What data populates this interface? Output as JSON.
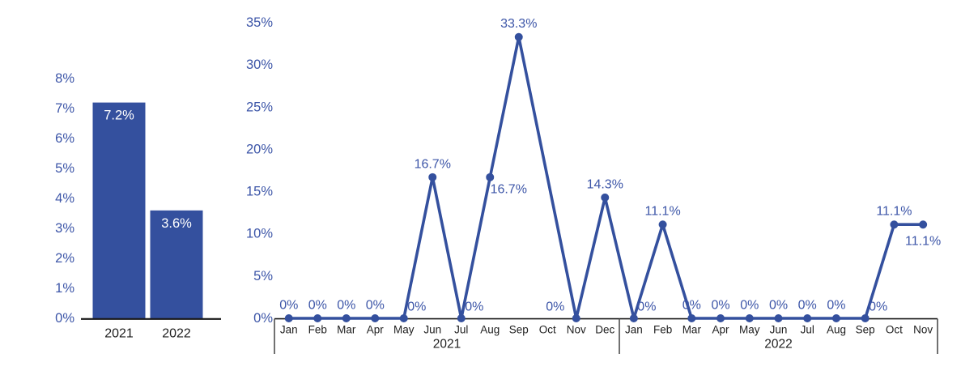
{
  "page": {
    "background": "#ffffff"
  },
  "colors": {
    "series_blue": "#34509E",
    "label_blue": "#3D56A8",
    "bar_value_white": "#ffffff",
    "axis_black": "#1a1a1a",
    "category_text": "#1f1f1f",
    "divider_gray": "#4d4d4d"
  },
  "chart_data": [
    {
      "type": "bar",
      "name": "annual-rate",
      "title": "",
      "xlabel": "",
      "ylabel": "",
      "categories": [
        "2021",
        "2022"
      ],
      "values": [
        7.2,
        3.6
      ],
      "data_labels": [
        "7.2%",
        "3.6%"
      ],
      "ylim": [
        0,
        8
      ],
      "ytick_step": 1,
      "ytick_labels": [
        "0%",
        "1%",
        "2%",
        "3%",
        "4%",
        "5%",
        "6%",
        "7%",
        "8%"
      ],
      "grid": false,
      "legend": false
    },
    {
      "type": "line",
      "name": "monthly-rate",
      "title": "",
      "xlabel": "",
      "ylabel": "",
      "ylim": [
        0,
        35
      ],
      "ytick_step": 5,
      "ytick_labels": [
        "0%",
        "5%",
        "10%",
        "15%",
        "20%",
        "25%",
        "30%",
        "35%"
      ],
      "grid": false,
      "legend": false,
      "groups": [
        {
          "label": "2021",
          "points": [
            {
              "month": "Jan",
              "value": 0,
              "label": "0%",
              "label_pos": "above"
            },
            {
              "month": "Feb",
              "value": 0,
              "label": "0%",
              "label_pos": "above"
            },
            {
              "month": "Mar",
              "value": 0,
              "label": "0%",
              "label_pos": "above"
            },
            {
              "month": "Apr",
              "value": 0,
              "label": "0%",
              "label_pos": "above"
            },
            {
              "month": "May",
              "value": 0,
              "label": "0%",
              "label_pos": "above-right"
            },
            {
              "month": "Jun",
              "value": 16.7,
              "label": "16.7%",
              "label_pos": "above"
            },
            {
              "month": "Jul",
              "value": 0,
              "label": "0%",
              "label_pos": "above-right"
            },
            {
              "month": "Aug",
              "value": 16.7,
              "label": "16.7%",
              "label_pos": "below-right"
            },
            {
              "month": "Sep",
              "value": 33.3,
              "label": "33.3%",
              "label_pos": "above"
            },
            {
              "month": "Oct",
              "value": null,
              "label": null,
              "label_pos": null
            },
            {
              "month": "Nov",
              "value": 0,
              "label": "0%",
              "label_pos": "above-left"
            },
            {
              "month": "Dec",
              "value": 14.3,
              "label": "14.3%",
              "label_pos": "above"
            }
          ]
        },
        {
          "label": "2022",
          "points": [
            {
              "month": "Jan",
              "value": 0,
              "label": "0%",
              "label_pos": "above-right"
            },
            {
              "month": "Feb",
              "value": 11.1,
              "label": "11.1%",
              "label_pos": "above"
            },
            {
              "month": "Mar",
              "value": 0,
              "label": "0%",
              "label_pos": "above"
            },
            {
              "month": "Apr",
              "value": 0,
              "label": "0%",
              "label_pos": "above"
            },
            {
              "month": "May",
              "value": 0,
              "label": "0%",
              "label_pos": "above"
            },
            {
              "month": "Jun",
              "value": 0,
              "label": "0%",
              "label_pos": "above"
            },
            {
              "month": "Jul",
              "value": 0,
              "label": "0%",
              "label_pos": "above"
            },
            {
              "month": "Aug",
              "value": 0,
              "label": "0%",
              "label_pos": "above"
            },
            {
              "month": "Sep",
              "value": 0,
              "label": "0%",
              "label_pos": "above-right"
            },
            {
              "month": "Oct",
              "value": 11.1,
              "label": "11.1%",
              "label_pos": "above"
            },
            {
              "month": "Nov",
              "value": 11.1,
              "label": "11.1%",
              "label_pos": "below"
            }
          ]
        }
      ]
    }
  ]
}
